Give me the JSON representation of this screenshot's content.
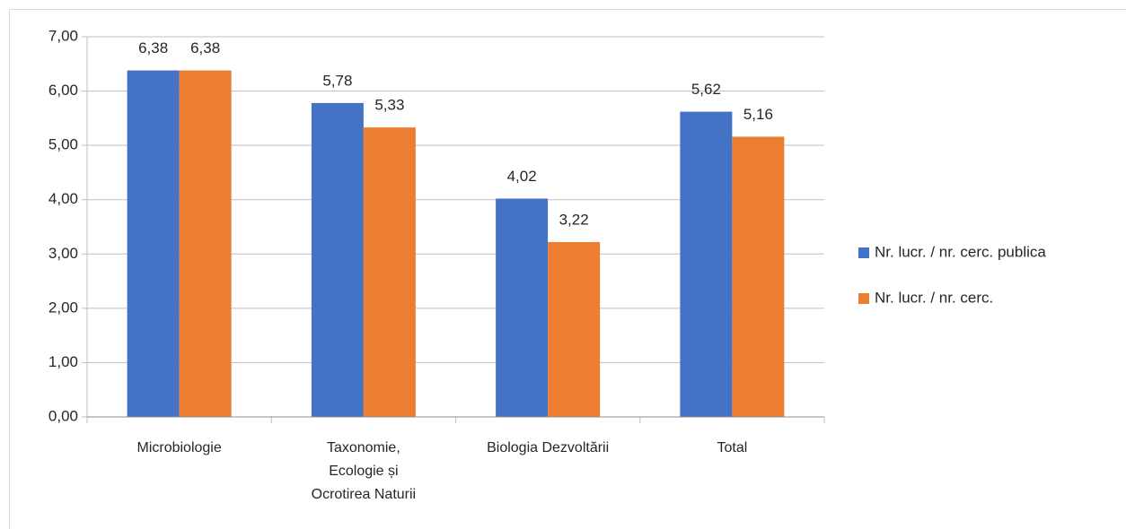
{
  "chart_data": {
    "type": "bar",
    "categories": [
      "Microbiologie",
      "Taxonomie, Ecologie și Ocrotirea Naturii",
      "Biologia Dezvoltării",
      "Total"
    ],
    "series": [
      {
        "name": "Nr. lucr. / nr. cerc. publica",
        "color": "#4472c4",
        "values": [
          6.38,
          5.78,
          4.02,
          5.62
        ],
        "value_labels": [
          "6,38",
          "5,78",
          "4,02",
          "5,62"
        ]
      },
      {
        "name": "Nr. lucr. / nr. cerc.",
        "color": "#ed7d31",
        "values": [
          6.38,
          5.33,
          3.22,
          5.16
        ],
        "value_labels": [
          "6,38",
          "5,33",
          "3,22",
          "5,16"
        ]
      }
    ],
    "ylim": [
      0,
      7
    ],
    "yticks": [
      {
        "value": 0,
        "label": "0,00"
      },
      {
        "value": 1,
        "label": "1,00"
      },
      {
        "value": 2,
        "label": "2,00"
      },
      {
        "value": 3,
        "label": "3,00"
      },
      {
        "value": 4,
        "label": "4,00"
      },
      {
        "value": 5,
        "label": "5,00"
      },
      {
        "value": 6,
        "label": "6,00"
      },
      {
        "value": 7,
        "label": "7,00"
      }
    ],
    "grid": true,
    "legend": "right"
  }
}
